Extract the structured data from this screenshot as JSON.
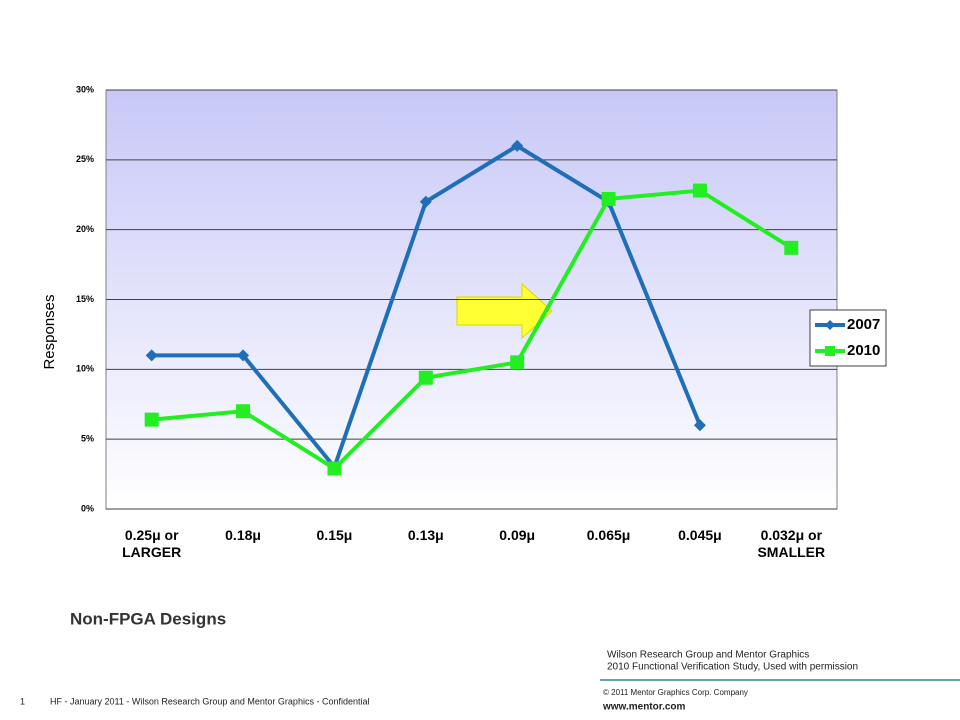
{
  "chart_data": {
    "type": "line",
    "y_label": "Responses",
    "categories": [
      "0.25μ  or LARGER",
      "0.18μ",
      "0.15μ",
      "0.13μ",
      "0.09μ",
      "0.065μ",
      "0.045μ",
      "0.032μ  or SMALLER"
    ],
    "series": [
      {
        "name": "2007",
        "color": "#1f6fb8",
        "marker": "diamond",
        "values": [
          11,
          11,
          3,
          22,
          26,
          22,
          6,
          null
        ]
      },
      {
        "name": "2010",
        "color": "#22ee22",
        "marker": "square",
        "values": [
          6.4,
          7,
          2.9,
          9.4,
          10.5,
          22.2,
          22.8,
          18.7
        ]
      }
    ],
    "ylim": [
      0,
      30
    ],
    "yticks": [
      {
        "value": 0,
        "label": "0%"
      },
      {
        "value": 5,
        "label": "5%"
      },
      {
        "value": 10,
        "label": "10%"
      },
      {
        "value": 15,
        "label": "15%"
      },
      {
        "value": 20,
        "label": "20%"
      },
      {
        "value": 25,
        "label": "25%"
      },
      {
        "value": 30,
        "label": "30%"
      }
    ],
    "grid": true,
    "legend": "right"
  },
  "slide": {
    "caption": "Non-FPGA Designs",
    "credit": [
      "Wilson Research Group and Mentor Graphics",
      "2010 Functional Verification Study,  Used with permission"
    ],
    "copyright": "© 2011 Mentor Graphics Corp. Company",
    "url": "www.mentor.com",
    "page_number": "1",
    "footer": "HF - January 2011 - Wilson Research Group and Mentor Graphics - Confidential"
  }
}
